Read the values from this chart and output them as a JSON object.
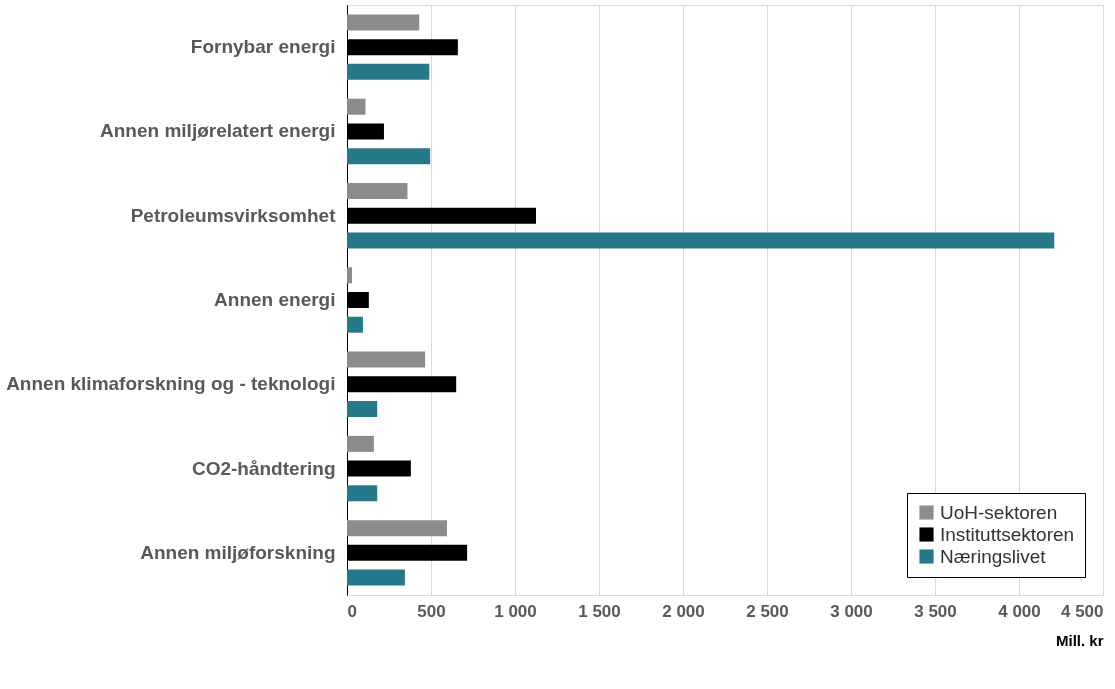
{
  "chart_data": {
    "type": "bar",
    "orientation": "horizontal",
    "xlabel": "Mill. kr",
    "categories": [
      "Fornybar energi",
      "Annen miljørelatert energi",
      "Petroleumsvirksomhet",
      "Annen energi",
      "Annen klimaforskning og - teknologi",
      "CO2-håndtering",
      "Annen miljøforskning"
    ],
    "series": [
      {
        "name": "UoH-sektoren",
        "color": "#8c8c8c",
        "values": [
          430,
          110,
          360,
          30,
          465,
          160,
          595
        ]
      },
      {
        "name": "Instituttsektoren",
        "color": "#000000",
        "values": [
          660,
          220,
          1125,
          130,
          650,
          380,
          715
        ]
      },
      {
        "name": "Næringslivet",
        "color": "#27798a",
        "values": [
          490,
          495,
          4210,
          95,
          180,
          180,
          345
        ]
      }
    ],
    "xlim": [
      0,
      4500
    ],
    "xticks": [
      0,
      500,
      {
        "value": 1000,
        "label": "1 000"
      },
      {
        "value": 1500,
        "label": "1 500"
      },
      {
        "value": 2000,
        "label": "2 000"
      },
      {
        "value": 2500,
        "label": "2 500"
      },
      {
        "value": 3000,
        "label": "3 000"
      },
      {
        "value": 3500,
        "label": "3 500"
      },
      {
        "value": 4000,
        "label": "4 000"
      },
      {
        "value": 4500,
        "label": "4 500"
      }
    ],
    "grid": "x",
    "legend": "bottom right"
  }
}
